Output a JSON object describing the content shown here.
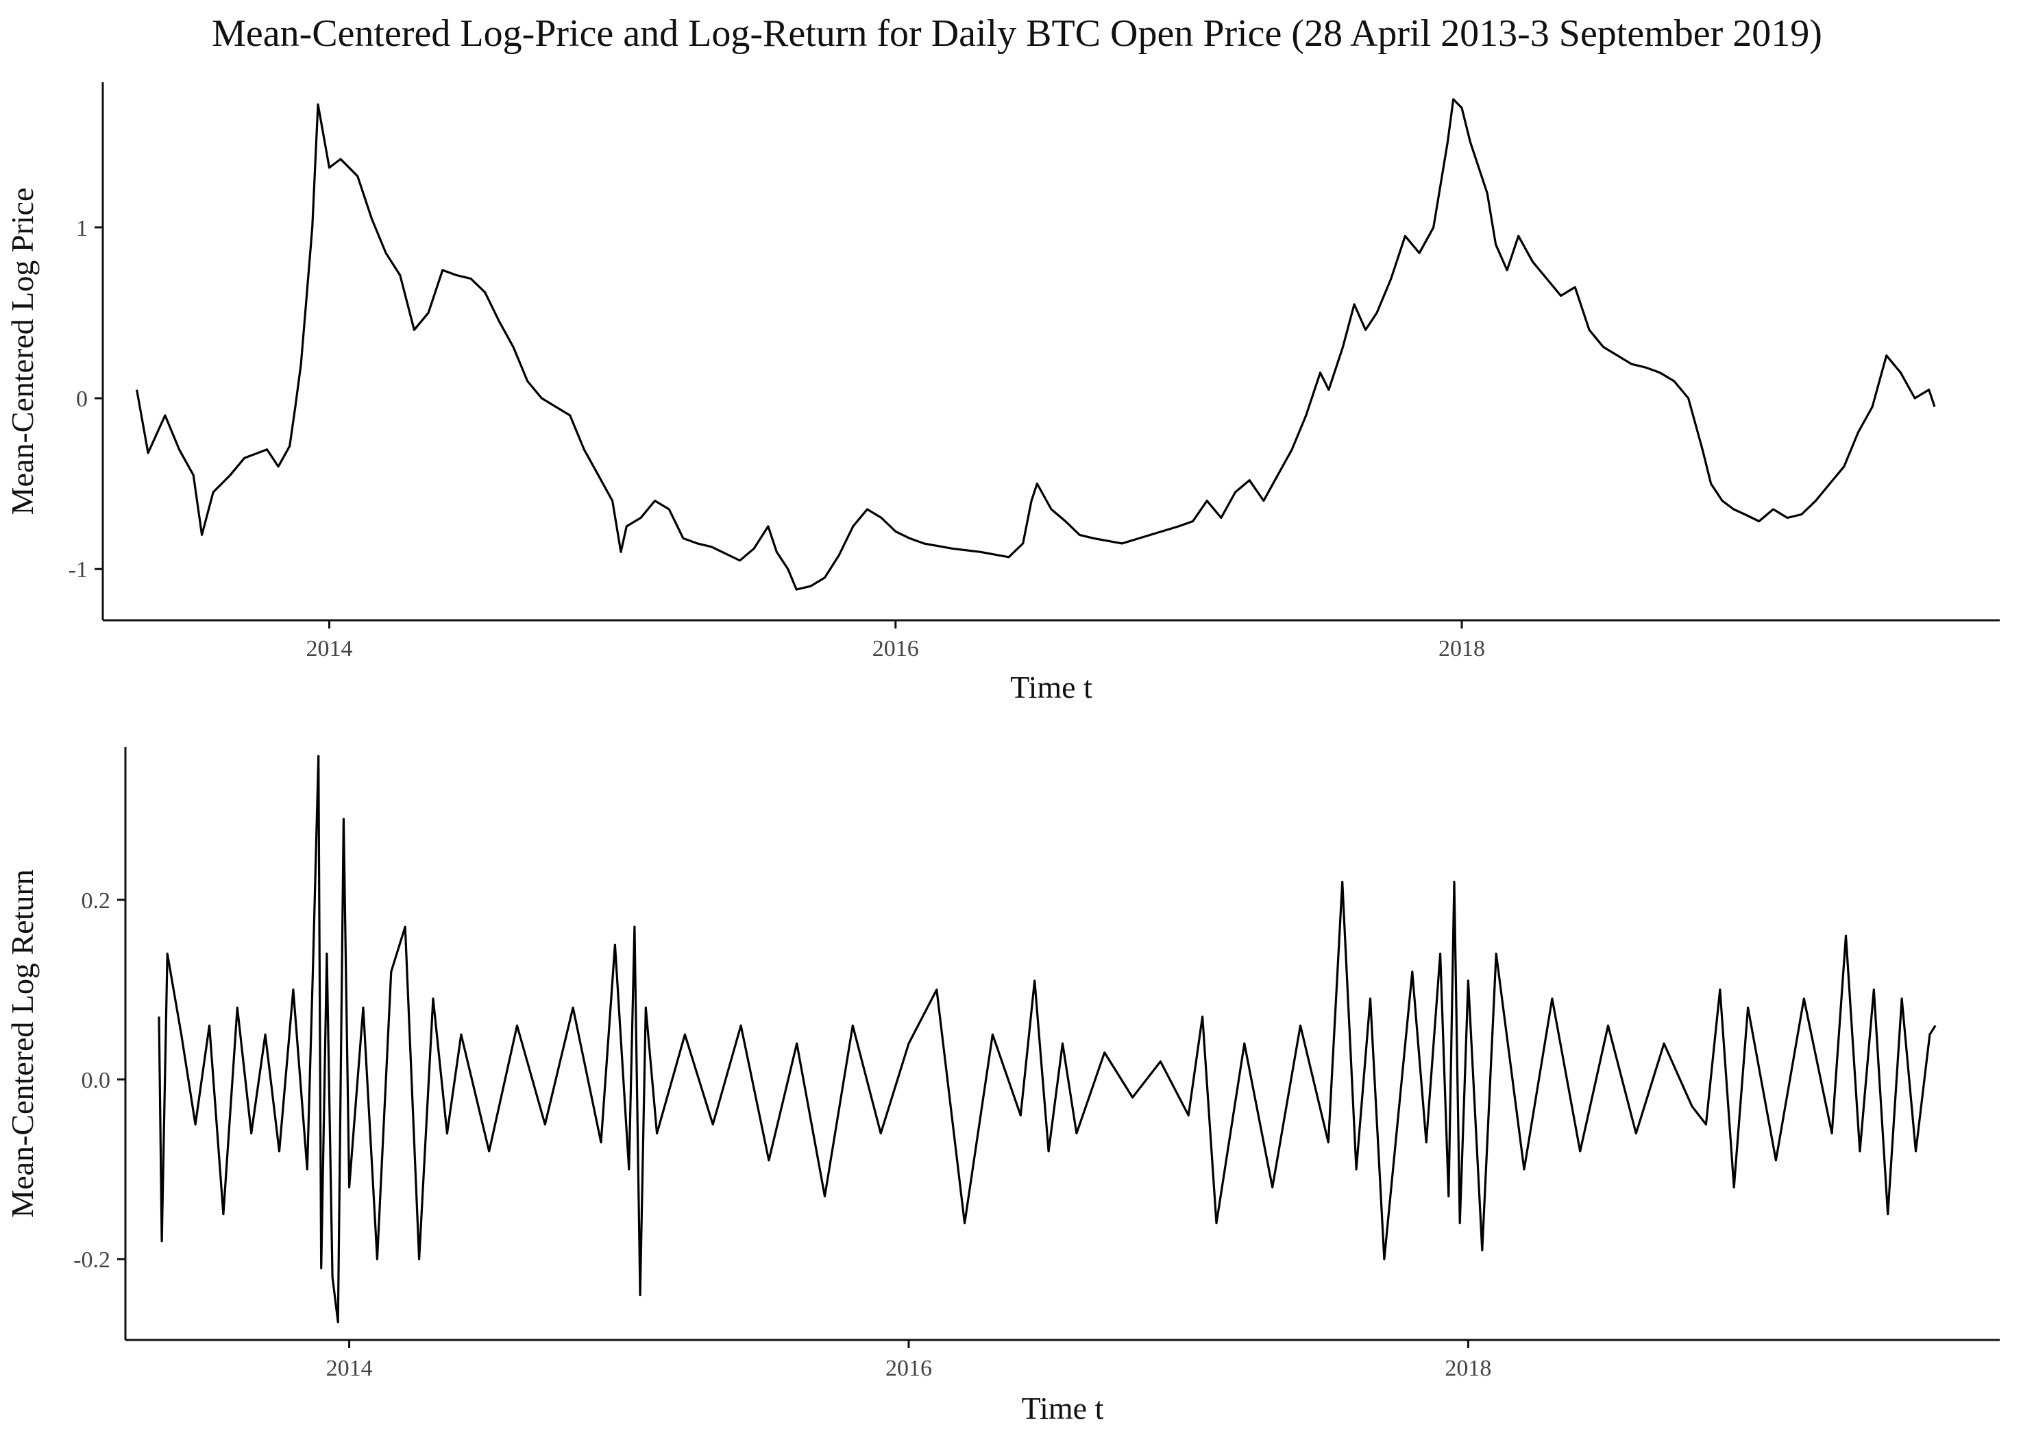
{
  "title": "Mean-Centered Log-Price and Log-Return for Daily BTC Open Price (28 April 2013-3 September 2019)",
  "chart_data": [
    {
      "type": "line",
      "title": "",
      "xlabel": "Time t",
      "ylabel": "Mean-Centered Log Price",
      "xlim": [
        2013.2,
        2019.9
      ],
      "ylim": [
        -1.3,
        1.85
      ],
      "x_ticks": [
        2014,
        2016,
        2018
      ],
      "x_tick_labels": [
        "2014",
        "2016",
        "2018"
      ],
      "y_ticks": [
        -1,
        0,
        1
      ],
      "y_tick_labels": [
        "-1",
        "0",
        "1"
      ],
      "grid": false,
      "series": [
        {
          "x": [
            2013.32,
            2013.36,
            2013.42,
            2013.47,
            2013.52,
            2013.55,
            2013.59,
            2013.65,
            2013.7,
            2013.78,
            2013.82,
            2013.86,
            2013.88,
            2013.9,
            2013.92,
            2013.94,
            2013.96,
            2014.0,
            2014.04,
            2014.1,
            2014.15,
            2014.2,
            2014.25,
            2014.3,
            2014.35,
            2014.4,
            2014.45,
            2014.5,
            2014.55,
            2014.6,
            2014.65,
            2014.7,
            2014.75,
            2014.8,
            2014.85,
            2014.9,
            2014.95,
            2015.0,
            2015.03,
            2015.05,
            2015.1,
            2015.15,
            2015.2,
            2015.25,
            2015.3,
            2015.35,
            2015.45,
            2015.5,
            2015.55,
            2015.58,
            2015.62,
            2015.65,
            2015.7,
            2015.75,
            2015.8,
            2015.85,
            2015.9,
            2015.95,
            2016.0,
            2016.05,
            2016.1,
            2016.2,
            2016.3,
            2016.4,
            2016.45,
            2016.48,
            2016.5,
            2016.55,
            2016.6,
            2016.65,
            2016.7,
            2016.8,
            2016.9,
            2017.0,
            2017.05,
            2017.1,
            2017.15,
            2017.2,
            2017.25,
            2017.3,
            2017.35,
            2017.4,
            2017.45,
            2017.5,
            2017.53,
            2017.58,
            2017.62,
            2017.66,
            2017.7,
            2017.75,
            2017.8,
            2017.85,
            2017.9,
            2017.95,
            2017.97,
            2018.0,
            2018.03,
            2018.06,
            2018.09,
            2018.12,
            2018.16,
            2018.2,
            2018.25,
            2018.3,
            2018.35,
            2018.4,
            2018.45,
            2018.5,
            2018.55,
            2018.6,
            2018.65,
            2018.7,
            2018.75,
            2018.8,
            2018.85,
            2018.88,
            2018.92,
            2018.96,
            2019.0,
            2019.05,
            2019.1,
            2019.15,
            2019.2,
            2019.25,
            2019.3,
            2019.35,
            2019.4,
            2019.45,
            2019.5,
            2019.55,
            2019.6,
            2019.65,
            2019.67
          ],
          "y": [
            0.05,
            -0.32,
            -0.1,
            -0.3,
            -0.45,
            -0.8,
            -0.55,
            -0.45,
            -0.35,
            -0.3,
            -0.4,
            -0.28,
            -0.05,
            0.2,
            0.6,
            1.0,
            1.72,
            1.35,
            1.4,
            1.3,
            1.05,
            0.85,
            0.72,
            0.4,
            0.5,
            0.75,
            0.72,
            0.7,
            0.62,
            0.45,
            0.3,
            0.1,
            0.0,
            -0.05,
            -0.1,
            -0.3,
            -0.45,
            -0.6,
            -0.9,
            -0.75,
            -0.7,
            -0.6,
            -0.65,
            -0.82,
            -0.85,
            -0.87,
            -0.95,
            -0.88,
            -0.75,
            -0.9,
            -1.0,
            -1.12,
            -1.1,
            -1.05,
            -0.92,
            -0.75,
            -0.65,
            -0.7,
            -0.78,
            -0.82,
            -0.85,
            -0.88,
            -0.9,
            -0.93,
            -0.85,
            -0.6,
            -0.5,
            -0.65,
            -0.72,
            -0.8,
            -0.82,
            -0.85,
            -0.8,
            -0.75,
            -0.72,
            -0.6,
            -0.7,
            -0.55,
            -0.48,
            -0.6,
            -0.45,
            -0.3,
            -0.1,
            0.15,
            0.05,
            0.3,
            0.55,
            0.4,
            0.5,
            0.7,
            0.95,
            0.85,
            1.0,
            1.5,
            1.75,
            1.7,
            1.5,
            1.35,
            1.2,
            0.9,
            0.75,
            0.95,
            0.8,
            0.7,
            0.6,
            0.65,
            0.4,
            0.3,
            0.25,
            0.2,
            0.18,
            0.15,
            0.1,
            0.0,
            -0.3,
            -0.5,
            -0.6,
            -0.65,
            -0.68,
            -0.72,
            -0.65,
            -0.7,
            -0.68,
            -0.6,
            -0.5,
            -0.4,
            -0.2,
            -0.05,
            0.25,
            0.15,
            0.0,
            0.05,
            -0.05
          ]
        }
      ]
    },
    {
      "type": "line",
      "title": "",
      "xlabel": "Time t",
      "ylabel": "Mean-Centered Log Return",
      "xlim": [
        2013.2,
        2019.9
      ],
      "ylim": [
        -0.29,
        0.37
      ],
      "x_ticks": [
        2014,
        2016,
        2018
      ],
      "x_tick_labels": [
        "2014",
        "2016",
        "2018"
      ],
      "y_ticks": [
        -0.2,
        0.0,
        0.2
      ],
      "y_tick_labels": [
        "-0.2",
        "0.0",
        "0.2"
      ],
      "grid": false,
      "series": [
        {
          "x": [
            2013.32,
            2013.33,
            2013.35,
            2013.4,
            2013.45,
            2013.5,
            2013.55,
            2013.6,
            2013.65,
            2013.7,
            2013.75,
            2013.8,
            2013.85,
            2013.87,
            2013.89,
            2013.9,
            2013.92,
            2013.94,
            2013.96,
            2013.98,
            2014.0,
            2014.05,
            2014.1,
            2014.15,
            2014.2,
            2014.25,
            2014.3,
            2014.35,
            2014.4,
            2014.5,
            2014.6,
            2014.7,
            2014.8,
            2014.9,
            2014.95,
            2015.0,
            2015.02,
            2015.04,
            2015.06,
            2015.1,
            2015.2,
            2015.3,
            2015.4,
            2015.5,
            2015.6,
            2015.7,
            2015.8,
            2015.9,
            2016.0,
            2016.1,
            2016.2,
            2016.3,
            2016.4,
            2016.45,
            2016.5,
            2016.55,
            2016.6,
            2016.7,
            2016.8,
            2016.9,
            2017.0,
            2017.05,
            2017.1,
            2017.2,
            2017.3,
            2017.4,
            2017.5,
            2017.55,
            2017.6,
            2017.65,
            2017.7,
            2017.8,
            2017.85,
            2017.9,
            2017.93,
            2017.95,
            2017.97,
            2018.0,
            2018.05,
            2018.1,
            2018.2,
            2018.3,
            2018.4,
            2018.5,
            2018.6,
            2018.7,
            2018.8,
            2018.85,
            2018.9,
            2018.95,
            2019.0,
            2019.1,
            2019.2,
            2019.3,
            2019.35,
            2019.4,
            2019.45,
            2019.5,
            2019.55,
            2019.6,
            2019.65,
            2019.67
          ],
          "y": [
            0.07,
            -0.18,
            0.14,
            0.05,
            -0.05,
            0.06,
            -0.15,
            0.08,
            -0.06,
            0.05,
            -0.08,
            0.1,
            -0.1,
            0.12,
            0.36,
            -0.21,
            0.14,
            -0.22,
            -0.27,
            0.29,
            -0.12,
            0.08,
            -0.2,
            0.12,
            0.17,
            -0.2,
            0.09,
            -0.06,
            0.05,
            -0.08,
            0.06,
            -0.05,
            0.08,
            -0.07,
            0.15,
            -0.1,
            0.17,
            -0.24,
            0.08,
            -0.06,
            0.05,
            -0.05,
            0.06,
            -0.09,
            0.04,
            -0.13,
            0.06,
            -0.06,
            0.04,
            0.1,
            -0.16,
            0.05,
            -0.04,
            0.11,
            -0.08,
            0.04,
            -0.06,
            0.03,
            -0.02,
            0.02,
            -0.04,
            0.07,
            -0.16,
            0.04,
            -0.12,
            0.06,
            -0.07,
            0.22,
            -0.1,
            0.09,
            -0.2,
            0.12,
            -0.07,
            0.14,
            -0.13,
            0.22,
            -0.16,
            0.11,
            -0.19,
            0.14,
            -0.1,
            0.09,
            -0.08,
            0.06,
            -0.06,
            0.04,
            -0.03,
            -0.05,
            0.1,
            -0.12,
            0.08,
            -0.09,
            0.09,
            -0.06,
            0.16,
            -0.08,
            0.1,
            -0.15,
            0.09,
            -0.08,
            0.05,
            0.06
          ]
        }
      ]
    }
  ]
}
